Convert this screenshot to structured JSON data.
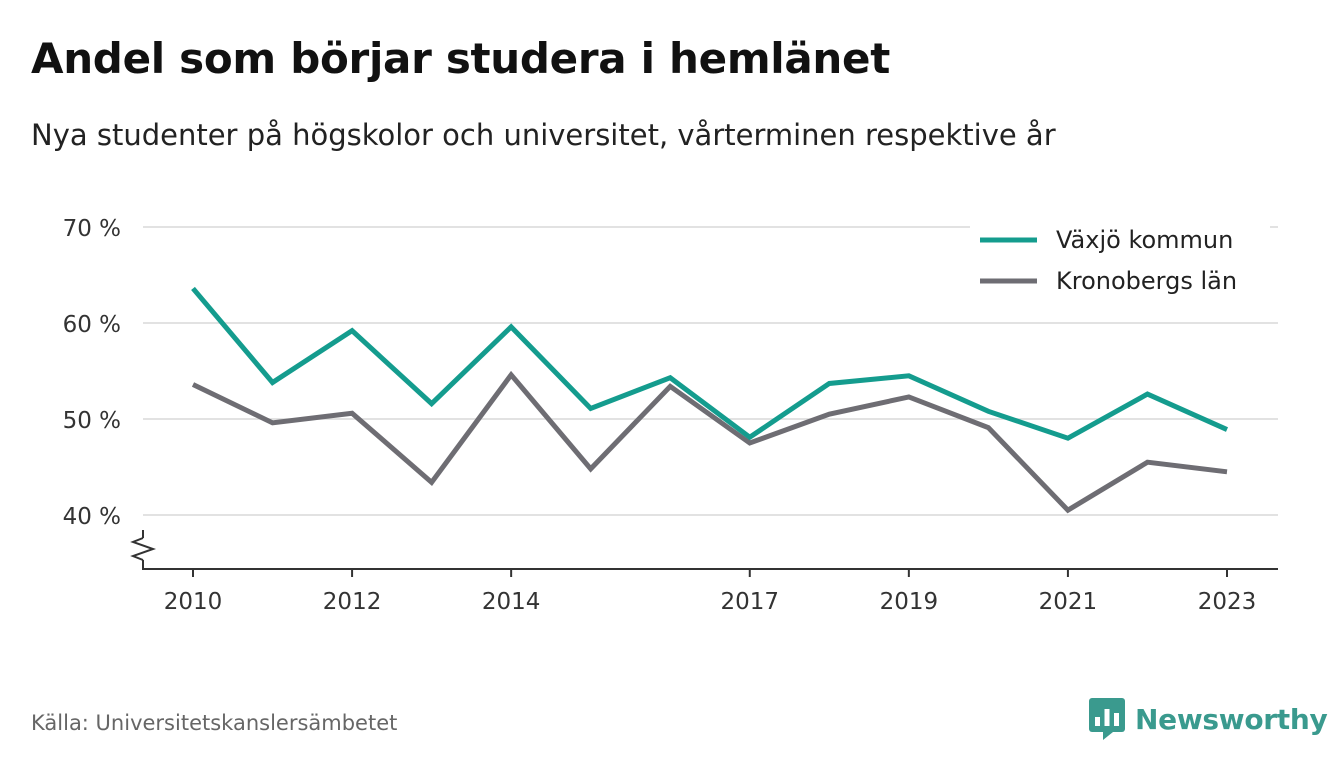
{
  "title": "Andel som börjar studera i hemlänet",
  "subtitle": "Nya studenter på högskolor och universitet, vårterminen respektive år",
  "source": "Källa: Universitetskanslersämbetet",
  "brand": {
    "name": "Newsworthy",
    "icon": "newsworthy-logo-icon",
    "color": "#3a9a8e"
  },
  "chart_data": {
    "type": "line",
    "x": [
      2010,
      2011,
      2012,
      2013,
      2014,
      2015,
      2016,
      2017,
      2018,
      2019,
      2020,
      2021,
      2022,
      2023
    ],
    "x_tick_labels": [
      "2010",
      "2012",
      "2014",
      "2017",
      "2019",
      "2021",
      "2023"
    ],
    "y_tick_labels": [
      "40 %",
      "50 %",
      "60 %",
      "70 %"
    ],
    "y_ticks": [
      40,
      50,
      60,
      70
    ],
    "ylim": [
      34.5,
      70
    ],
    "y_axis_break": true,
    "grid": true,
    "legend_position": "top-right",
    "series": [
      {
        "name": "Växjö kommun",
        "color": "#149c8e",
        "values": [
          63.6,
          53.8,
          59.2,
          51.6,
          59.6,
          51.1,
          54.3,
          48.1,
          53.7,
          54.5,
          50.8,
          48.0,
          52.6,
          48.9
        ]
      },
      {
        "name": "Kronobergs län",
        "color": "#6e6d73",
        "values": [
          53.6,
          49.6,
          50.6,
          43.4,
          54.6,
          44.8,
          53.4,
          47.5,
          50.5,
          52.3,
          49.1,
          40.5,
          45.5,
          44.5
        ]
      }
    ]
  }
}
